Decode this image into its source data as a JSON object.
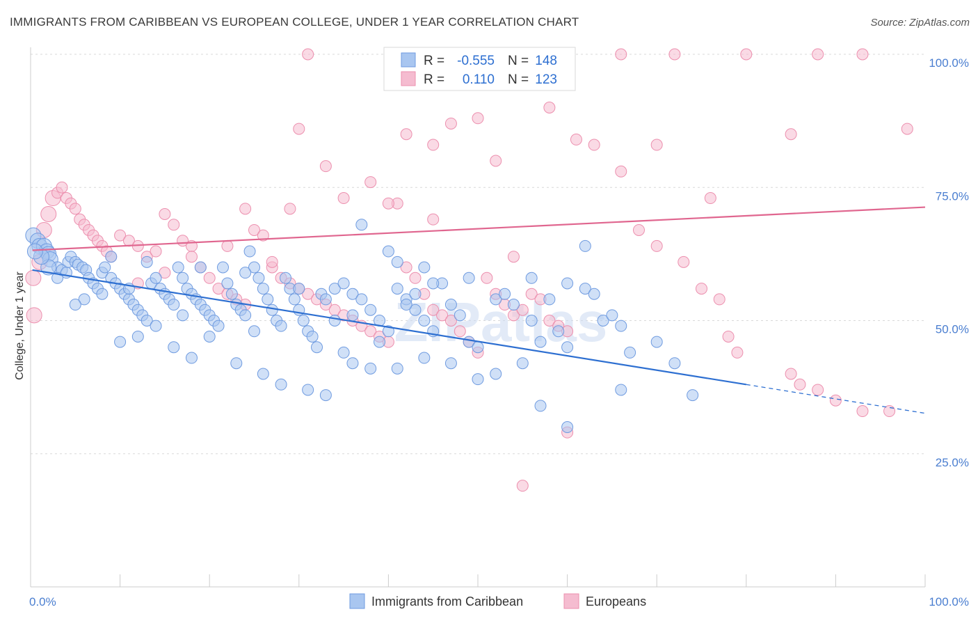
{
  "title": "IMMIGRANTS FROM CARIBBEAN VS EUROPEAN COLLEGE, UNDER 1 YEAR CORRELATION CHART",
  "source": "Source: ZipAtlas.com",
  "watermark": "ZIPatlas",
  "colors": {
    "blue_fill": "#a9c6f0",
    "blue_stroke": "#6f9be0",
    "blue_line": "#2d6fd1",
    "pink_fill": "#f5bcd0",
    "pink_stroke": "#ec8fae",
    "pink_line": "#e0668f",
    "tick_text": "#4a7ed0",
    "grid": "#d8d8d8"
  },
  "legend": {
    "rows": [
      {
        "r_label": "R =",
        "r_value": "-0.555",
        "n_label": "N =",
        "n_value": "148",
        "series": "blue"
      },
      {
        "r_label": "R =",
        "r_value": "0.110",
        "n_label": "N =",
        "n_value": "123",
        "series": "pink"
      }
    ]
  },
  "chart_data": {
    "type": "scatter",
    "xlabel": "",
    "ylabel": "College, Under 1 year",
    "xlim": [
      0,
      100
    ],
    "ylim": [
      0,
      100
    ],
    "x_tick_labels": [
      "0.0%",
      "100.0%"
    ],
    "y_tick_labels": [
      "25.0%",
      "50.0%",
      "75.0%",
      "100.0%"
    ],
    "y_ticks": [
      25,
      50,
      75,
      100
    ],
    "grid": "horizontal dashed",
    "legend_position": "top-center",
    "series": [
      {
        "name": "Immigrants from Caribbean",
        "color": "blue",
        "r": -0.555,
        "n": 148,
        "trend": {
          "x0": 0.2,
          "y0": 59.5,
          "x1": 80,
          "y1": 38,
          "dash_to_x": 100,
          "dash_to_y": 32.6
        },
        "points": [
          [
            0.3,
            66
          ],
          [
            0.8,
            65
          ],
          [
            1,
            64
          ],
          [
            1.5,
            64
          ],
          [
            1.8,
            63
          ],
          [
            2,
            62.5
          ],
          [
            2.2,
            61.5
          ],
          [
            3,
            60
          ],
          [
            3.5,
            59.5
          ],
          [
            4,
            59
          ],
          [
            4.2,
            61
          ],
          [
            4.5,
            62
          ],
          [
            5,
            61
          ],
          [
            5.3,
            60.5
          ],
          [
            5.8,
            60
          ],
          [
            6.2,
            59.5
          ],
          [
            6.5,
            58
          ],
          [
            7,
            57
          ],
          [
            7.5,
            56
          ],
          [
            8,
            59
          ],
          [
            8.3,
            60
          ],
          [
            9,
            58
          ],
          [
            9.5,
            57
          ],
          [
            10,
            56
          ],
          [
            10.5,
            55
          ],
          [
            11,
            54
          ],
          [
            11.5,
            53
          ],
          [
            12,
            52
          ],
          [
            12.5,
            51
          ],
          [
            13,
            50
          ],
          [
            13.5,
            57
          ],
          [
            14,
            58
          ],
          [
            14.5,
            56
          ],
          [
            15,
            55
          ],
          [
            15.5,
            54
          ],
          [
            16,
            53
          ],
          [
            16.5,
            60
          ],
          [
            17,
            58
          ],
          [
            17.5,
            56
          ],
          [
            18,
            55
          ],
          [
            18.5,
            54
          ],
          [
            19,
            53
          ],
          [
            19.5,
            52
          ],
          [
            20,
            51
          ],
          [
            20.5,
            50
          ],
          [
            21,
            49
          ],
          [
            21.5,
            60
          ],
          [
            22,
            57
          ],
          [
            22.5,
            55
          ],
          [
            23,
            53
          ],
          [
            23.5,
            52
          ],
          [
            24,
            51
          ],
          [
            24.5,
            63
          ],
          [
            25,
            60
          ],
          [
            25.5,
            58
          ],
          [
            26,
            56
          ],
          [
            26.5,
            54
          ],
          [
            27,
            52
          ],
          [
            27.5,
            50
          ],
          [
            28,
            49
          ],
          [
            28.5,
            58
          ],
          [
            29,
            56
          ],
          [
            29.5,
            54
          ],
          [
            30,
            52
          ],
          [
            30.5,
            50
          ],
          [
            31,
            48
          ],
          [
            31.5,
            47
          ],
          [
            32,
            45
          ],
          [
            32.5,
            55
          ],
          [
            33,
            54
          ],
          [
            34,
            56
          ],
          [
            35,
            57
          ],
          [
            36,
            55
          ],
          [
            37,
            54
          ],
          [
            38,
            52
          ],
          [
            39,
            50
          ],
          [
            40,
            48
          ],
          [
            41,
            56
          ],
          [
            42,
            54
          ],
          [
            43,
            52
          ],
          [
            44,
            50
          ],
          [
            45,
            48
          ],
          [
            46,
            57
          ],
          [
            47,
            53
          ],
          [
            48,
            51
          ],
          [
            49,
            46
          ],
          [
            50,
            45
          ],
          [
            52,
            54
          ],
          [
            53,
            55
          ],
          [
            54,
            53
          ],
          [
            56,
            50
          ],
          [
            58,
            54
          ],
          [
            60,
            45
          ],
          [
            62,
            56
          ],
          [
            63,
            55
          ],
          [
            64,
            50
          ],
          [
            65,
            51
          ],
          [
            66,
            49
          ],
          [
            67,
            44
          ],
          [
            62,
            64
          ],
          [
            40,
            63
          ],
          [
            37,
            68
          ],
          [
            41,
            61
          ],
          [
            44,
            60
          ],
          [
            24,
            59
          ],
          [
            30,
            56
          ],
          [
            17,
            51
          ],
          [
            14,
            49
          ],
          [
            12,
            47
          ],
          [
            10,
            46
          ],
          [
            16,
            45
          ],
          [
            18,
            43
          ],
          [
            23,
            42
          ],
          [
            26,
            40
          ],
          [
            28,
            38
          ],
          [
            31,
            37
          ],
          [
            33,
            36
          ],
          [
            35,
            44
          ],
          [
            36,
            42
          ],
          [
            38,
            41
          ],
          [
            41,
            41
          ],
          [
            44,
            43
          ],
          [
            47,
            42
          ],
          [
            50,
            39
          ],
          [
            52,
            40
          ],
          [
            55,
            42
          ],
          [
            57,
            46
          ],
          [
            59,
            48
          ],
          [
            60,
            57
          ],
          [
            56,
            58
          ],
          [
            49,
            58
          ],
          [
            45,
            57
          ],
          [
            43,
            55
          ],
          [
            42,
            53
          ],
          [
            39,
            46
          ],
          [
            36,
            51
          ],
          [
            34,
            50
          ],
          [
            25,
            48
          ],
          [
            20,
            47
          ],
          [
            11,
            56
          ],
          [
            8,
            55
          ],
          [
            6,
            54
          ],
          [
            5,
            53
          ],
          [
            9,
            62
          ],
          [
            13,
            61
          ],
          [
            19,
            60
          ],
          [
            70,
            46
          ],
          [
            72,
            42
          ],
          [
            74,
            36
          ],
          [
            57,
            34
          ],
          [
            60,
            30
          ],
          [
            66,
            37
          ],
          [
            3,
            58
          ],
          [
            2,
            60
          ],
          [
            1.2,
            62
          ],
          [
            0.5,
            63
          ]
        ]
      },
      {
        "name": "Europeans",
        "color": "pink",
        "r": 0.11,
        "n": 123,
        "trend": {
          "x0": 0.2,
          "y0": 63.2,
          "x1": 100,
          "y1": 71.3
        },
        "points": [
          [
            0.3,
            58
          ],
          [
            0.4,
            51
          ],
          [
            1,
            61
          ],
          [
            1.5,
            67
          ],
          [
            2,
            70
          ],
          [
            2.5,
            73
          ],
          [
            3,
            74
          ],
          [
            3.5,
            75
          ],
          [
            4,
            73
          ],
          [
            4.5,
            72
          ],
          [
            5,
            71
          ],
          [
            5.5,
            69
          ],
          [
            6,
            68
          ],
          [
            6.5,
            67
          ],
          [
            7,
            66
          ],
          [
            7.5,
            65
          ],
          [
            8,
            64
          ],
          [
            8.5,
            63
          ],
          [
            9,
            62
          ],
          [
            10,
            66
          ],
          [
            11,
            65
          ],
          [
            12,
            64
          ],
          [
            13,
            62
          ],
          [
            14,
            63
          ],
          [
            15,
            70
          ],
          [
            16,
            68
          ],
          [
            17,
            65
          ],
          [
            18,
            64
          ],
          [
            19,
            60
          ],
          [
            20,
            58
          ],
          [
            21,
            56
          ],
          [
            22,
            55
          ],
          [
            23,
            54
          ],
          [
            24,
            71
          ],
          [
            25,
            67
          ],
          [
            26,
            66
          ],
          [
            27,
            60
          ],
          [
            28,
            58
          ],
          [
            29,
            57
          ],
          [
            30,
            56
          ],
          [
            31,
            55
          ],
          [
            32,
            54
          ],
          [
            33,
            53
          ],
          [
            34,
            52
          ],
          [
            35,
            51
          ],
          [
            36,
            50
          ],
          [
            37,
            49
          ],
          [
            38,
            48
          ],
          [
            39,
            47
          ],
          [
            40,
            46
          ],
          [
            41,
            72
          ],
          [
            42,
            60
          ],
          [
            43,
            58
          ],
          [
            44,
            55
          ],
          [
            45,
            52
          ],
          [
            46,
            51
          ],
          [
            47,
            50
          ],
          [
            48,
            48
          ],
          [
            49,
            46
          ],
          [
            50,
            44
          ],
          [
            51,
            58
          ],
          [
            52,
            55
          ],
          [
            53,
            53
          ],
          [
            54,
            51
          ],
          [
            55,
            52
          ],
          [
            56,
            55
          ],
          [
            57,
            54
          ],
          [
            58,
            50
          ],
          [
            59,
            49
          ],
          [
            60,
            48
          ],
          [
            30,
            86
          ],
          [
            33,
            79
          ],
          [
            38,
            76
          ],
          [
            42,
            85
          ],
          [
            45,
            83
          ],
          [
            47,
            87
          ],
          [
            50,
            88
          ],
          [
            52,
            80
          ],
          [
            58,
            90
          ],
          [
            61,
            84
          ],
          [
            63,
            83
          ],
          [
            68,
            67
          ],
          [
            70,
            64
          ],
          [
            73,
            61
          ],
          [
            75,
            56
          ],
          [
            77,
            54
          ],
          [
            78,
            47
          ],
          [
            79,
            44
          ],
          [
            85,
            40
          ],
          [
            86,
            38
          ],
          [
            88,
            37
          ],
          [
            90,
            35
          ],
          [
            93,
            33
          ],
          [
            96,
            33
          ],
          [
            98,
            86
          ],
          [
            85,
            85
          ],
          [
            76,
            73
          ],
          [
            66,
            78
          ],
          [
            70,
            83
          ],
          [
            54,
            62
          ],
          [
            45,
            69
          ],
          [
            40,
            72
          ],
          [
            35,
            73
          ],
          [
            29,
            71
          ],
          [
            22,
            64
          ],
          [
            18,
            62
          ],
          [
            15,
            59
          ],
          [
            12,
            57
          ],
          [
            60,
            29
          ],
          [
            55,
            19
          ],
          [
            44,
            100
          ],
          [
            48,
            100
          ],
          [
            52,
            100
          ],
          [
            56,
            100
          ],
          [
            66,
            100
          ],
          [
            72,
            100
          ],
          [
            80,
            100
          ],
          [
            88,
            100
          ],
          [
            93,
            100
          ],
          [
            43,
            99
          ],
          [
            31,
            100
          ],
          [
            27,
            61
          ],
          [
            24,
            53
          ]
        ]
      }
    ]
  }
}
